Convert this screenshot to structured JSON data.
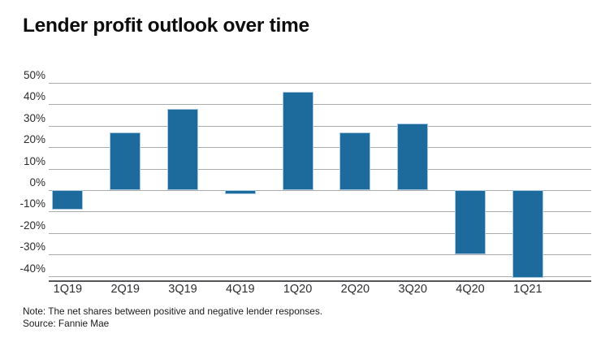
{
  "title": "Lender profit outlook over time",
  "footer": {
    "note": "Note: The net shares between positive and negative lender responses.",
    "source": "Source: Fannie Mae"
  },
  "colors": {
    "bar": "#1c6b9c",
    "bar_border": "#a7c9e2",
    "gridline": "#ababab",
    "axis": "#55565a",
    "title_text": "#0d0d0d",
    "tick_text": "#2b2b2b"
  },
  "chart_data": {
    "type": "bar",
    "title": "Lender profit outlook over time",
    "categories": [
      "1Q19",
      "2Q19",
      "3Q19",
      "4Q19",
      "1Q20",
      "2Q20",
      "3Q20",
      "4Q20",
      "1Q21"
    ],
    "values": [
      -9,
      27,
      38,
      -2,
      46,
      27,
      31,
      -30,
      -41
    ],
    "unit": "%",
    "xlabel": "",
    "ylabel": "",
    "yticks": [
      50,
      40,
      30,
      20,
      10,
      0,
      -10,
      -20,
      -30,
      -40
    ],
    "ylim": [
      -42,
      50
    ],
    "grid": true,
    "legend": false,
    "note": "Note: The net shares between positive and negative lender responses.",
    "source": "Source: Fannie Mae"
  }
}
